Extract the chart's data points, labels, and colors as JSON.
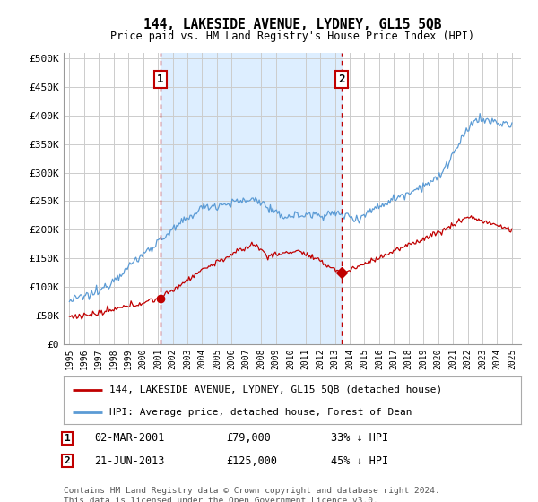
{
  "title": "144, LAKESIDE AVENUE, LYDNEY, GL15 5QB",
  "subtitle": "Price paid vs. HM Land Registry's House Price Index (HPI)",
  "ylabel_ticks": [
    "£0",
    "£50K",
    "£100K",
    "£150K",
    "£200K",
    "£250K",
    "£300K",
    "£350K",
    "£400K",
    "£450K",
    "£500K"
  ],
  "ytick_values": [
    0,
    50000,
    100000,
    150000,
    200000,
    250000,
    300000,
    350000,
    400000,
    450000,
    500000
  ],
  "ylim": [
    0,
    510000
  ],
  "xlim_start": 1994.6,
  "xlim_end": 2025.6,
  "hpi_color": "#5b9bd5",
  "price_color": "#c00000",
  "vline_color": "#c00000",
  "shade_color": "#ddeeff",
  "purchase1_x": 2001.16,
  "purchase1_y": 79000,
  "purchase2_x": 2013.47,
  "purchase2_y": 125000,
  "legend_house_label": "144, LAKESIDE AVENUE, LYDNEY, GL15 5QB (detached house)",
  "legend_hpi_label": "HPI: Average price, detached house, Forest of Dean",
  "annotation1_label": "1",
  "annotation1_date": "02-MAR-2001",
  "annotation1_price": "£79,000",
  "annotation1_pct": "33% ↓ HPI",
  "annotation2_label": "2",
  "annotation2_date": "21-JUN-2013",
  "annotation2_price": "£125,000",
  "annotation2_pct": "45% ↓ HPI",
  "footnote": "Contains HM Land Registry data © Crown copyright and database right 2024.\nThis data is licensed under the Open Government Licence v3.0.",
  "background_color": "#ffffff",
  "grid_color": "#cccccc"
}
